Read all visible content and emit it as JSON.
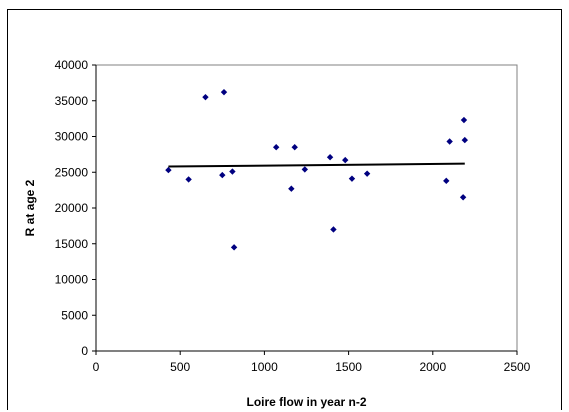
{
  "chart_data": {
    "type": "scatter",
    "title": "",
    "xlabel": "Loire flow in year n-2",
    "ylabel": "R at age 2",
    "xlim": [
      0,
      2500
    ],
    "ylim": [
      0,
      40000
    ],
    "x_ticks": [
      "0",
      "500",
      "1000",
      "1500",
      "2000",
      "2500"
    ],
    "y_ticks": [
      "0",
      "5000",
      "10000",
      "15000",
      "20000",
      "25000",
      "30000",
      "35000",
      "40000"
    ],
    "grid": false,
    "legend": "none",
    "series": [
      {
        "points": [
          {
            "x": 430,
            "y": 25300
          },
          {
            "x": 550,
            "y": 24000
          },
          {
            "x": 650,
            "y": 35500
          },
          {
            "x": 750,
            "y": 24600
          },
          {
            "x": 760,
            "y": 36200
          },
          {
            "x": 810,
            "y": 25100
          },
          {
            "x": 820,
            "y": 14500
          },
          {
            "x": 1070,
            "y": 28500
          },
          {
            "x": 1160,
            "y": 22700
          },
          {
            "x": 1180,
            "y": 28500
          },
          {
            "x": 1240,
            "y": 25400
          },
          {
            "x": 1390,
            "y": 27100
          },
          {
            "x": 1410,
            "y": 17000
          },
          {
            "x": 1480,
            "y": 26700
          },
          {
            "x": 1520,
            "y": 24100
          },
          {
            "x": 1610,
            "y": 24800
          },
          {
            "x": 2080,
            "y": 23800
          },
          {
            "x": 2100,
            "y": 29300
          },
          {
            "x": 2180,
            "y": 21500
          },
          {
            "x": 2185,
            "y": 32300
          },
          {
            "x": 2190,
            "y": 29500
          }
        ]
      }
    ],
    "trendline": {
      "x": [
        430,
        2190
      ],
      "y": [
        25800,
        26200
      ]
    },
    "colors": {
      "marker": "#000080",
      "trendline": "#000000",
      "plot_background": "#ffffff",
      "axis": "#808080"
    }
  }
}
